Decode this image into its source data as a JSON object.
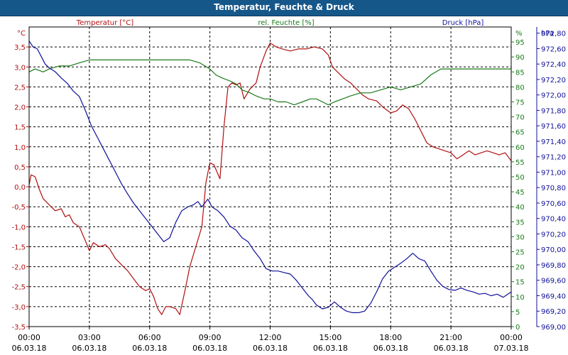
{
  "window": {
    "title": "Temperatur, Feuchte & Druck"
  },
  "colors": {
    "temperature": "#b01010",
    "humidity": "#1a7a1a",
    "pressure": "#10109a",
    "titlebar": "#16578a",
    "grid": "#000000"
  },
  "chart_data": {
    "type": "line",
    "title": "Temperatur, Feuchte & Druck",
    "xlim": [
      0,
      24
    ],
    "xticks": [
      {
        "x": 0,
        "time": "00:00",
        "date": "06.03.18"
      },
      {
        "x": 3,
        "time": "03:00",
        "date": "06.03.18"
      },
      {
        "x": 6,
        "time": "06:00",
        "date": "06.03.18"
      },
      {
        "x": 9,
        "time": "09:00",
        "date": "06.03.18"
      },
      {
        "x": 12,
        "time": "12:00",
        "date": "06.03.18"
      },
      {
        "x": 15,
        "time": "15:00",
        "date": "06.03.18"
      },
      {
        "x": 18,
        "time": "18:00",
        "date": "06.03.18"
      },
      {
        "x": 21,
        "time": "21:00",
        "date": "06.03.18"
      },
      {
        "x": 24,
        "time": "00:00",
        "date": "07.03.18"
      }
    ],
    "axes": {
      "temperature": {
        "title": "Temperatur [°C]",
        "unit": "°C",
        "ylim": [
          -3.5,
          4.0
        ],
        "ticks": [
          {
            "v": 3.5,
            "label": "3,5"
          },
          {
            "v": 3.0,
            "label": "3,0"
          },
          {
            "v": 2.5,
            "label": "2,5"
          },
          {
            "v": 2.0,
            "label": "2,0"
          },
          {
            "v": 1.5,
            "label": "1,5"
          },
          {
            "v": 1.0,
            "label": "1,0"
          },
          {
            "v": 0.5,
            "label": "0,5"
          },
          {
            "v": 0.0,
            "label": "0,0"
          },
          {
            "v": -0.5,
            "label": "-0,5"
          },
          {
            "v": -1.0,
            "label": "-1,0"
          },
          {
            "v": -1.5,
            "label": "-1,5"
          },
          {
            "v": -2.0,
            "label": "-2,0"
          },
          {
            "v": -2.5,
            "label": "-2,5"
          },
          {
            "v": -3.0,
            "label": "-3,0"
          },
          {
            "v": -3.5,
            "label": "-3,5"
          }
        ]
      },
      "humidity": {
        "title": "rel. Feuchte [%]",
        "unit": "%",
        "ylim": [
          0,
          100
        ],
        "ticks": [
          {
            "v": 95,
            "label": "95"
          },
          {
            "v": 90,
            "label": "90"
          },
          {
            "v": 85,
            "label": "85"
          },
          {
            "v": 80,
            "label": "80"
          },
          {
            "v": 75,
            "label": "75"
          },
          {
            "v": 70,
            "label": "70"
          },
          {
            "v": 65,
            "label": "65"
          },
          {
            "v": 60,
            "label": "60"
          },
          {
            "v": 55,
            "label": "55"
          },
          {
            "v": 50,
            "label": "50"
          },
          {
            "v": 45,
            "label": "45"
          },
          {
            "v": 40,
            "label": "40"
          },
          {
            "v": 35,
            "label": "35"
          },
          {
            "v": 30,
            "label": "30"
          },
          {
            "v": 25,
            "label": "25"
          },
          {
            "v": 20,
            "label": "20"
          },
          {
            "v": 15,
            "label": "15"
          },
          {
            "v": 10,
            "label": "10"
          },
          {
            "v": 5,
            "label": "5"
          },
          {
            "v": 0,
            "label": "0"
          }
        ]
      },
      "pressure": {
        "title": "Druck [hPa]",
        "unit": "hPa",
        "ylim": [
          969.0,
          972.88
        ],
        "ticks": [
          {
            "v": 972.8,
            "label": "972,80"
          },
          {
            "v": 972.6,
            "label": "972,60"
          },
          {
            "v": 972.4,
            "label": "972,40"
          },
          {
            "v": 972.2,
            "label": "972,20"
          },
          {
            "v": 972.0,
            "label": "972,00"
          },
          {
            "v": 971.8,
            "label": "971,80"
          },
          {
            "v": 971.6,
            "label": "971,60"
          },
          {
            "v": 971.4,
            "label": "971,40"
          },
          {
            "v": 971.2,
            "label": "971,20"
          },
          {
            "v": 971.0,
            "label": "971,00"
          },
          {
            "v": 970.8,
            "label": "970,80"
          },
          {
            "v": 970.6,
            "label": "970,60"
          },
          {
            "v": 970.4,
            "label": "970,40"
          },
          {
            "v": 970.2,
            "label": "970,20"
          },
          {
            "v": 970.0,
            "label": "970,00"
          },
          {
            "v": 969.8,
            "label": "969,80"
          },
          {
            "v": 969.6,
            "label": "969,60"
          },
          {
            "v": 969.4,
            "label": "969,40"
          },
          {
            "v": 969.2,
            "label": "969,20"
          },
          {
            "v": 969.0,
            "label": "969,00"
          }
        ]
      }
    },
    "series": [
      {
        "name": "Temperatur [°C]",
        "axis": "temperature",
        "points": [
          [
            0,
            0.05
          ],
          [
            0.1,
            0.3
          ],
          [
            0.3,
            0.25
          ],
          [
            0.5,
            -0.05
          ],
          [
            0.7,
            -0.3
          ],
          [
            1.0,
            -0.45
          ],
          [
            1.3,
            -0.6
          ],
          [
            1.6,
            -0.55
          ],
          [
            1.8,
            -0.75
          ],
          [
            2.0,
            -0.7
          ],
          [
            2.2,
            -0.9
          ],
          [
            2.5,
            -1.0
          ],
          [
            2.8,
            -1.35
          ],
          [
            3.0,
            -1.6
          ],
          [
            3.2,
            -1.4
          ],
          [
            3.5,
            -1.5
          ],
          [
            3.8,
            -1.45
          ],
          [
            4.0,
            -1.55
          ],
          [
            4.3,
            -1.8
          ],
          [
            4.6,
            -1.95
          ],
          [
            4.9,
            -2.1
          ],
          [
            5.2,
            -2.3
          ],
          [
            5.5,
            -2.5
          ],
          [
            5.8,
            -2.6
          ],
          [
            6.0,
            -2.55
          ],
          [
            6.2,
            -2.75
          ],
          [
            6.4,
            -3.05
          ],
          [
            6.6,
            -3.2
          ],
          [
            6.8,
            -3.0
          ],
          [
            7.0,
            -3.0
          ],
          [
            7.3,
            -3.05
          ],
          [
            7.5,
            -3.2
          ],
          [
            7.8,
            -2.5
          ],
          [
            8.0,
            -2.0
          ],
          [
            8.3,
            -1.5
          ],
          [
            8.6,
            -1.0
          ],
          [
            8.8,
            0.1
          ],
          [
            9.0,
            0.6
          ],
          [
            9.2,
            0.55
          ],
          [
            9.5,
            0.2
          ],
          [
            9.7,
            1.5
          ],
          [
            9.9,
            2.5
          ],
          [
            10.1,
            2.6
          ],
          [
            10.3,
            2.55
          ],
          [
            10.5,
            2.6
          ],
          [
            10.7,
            2.2
          ],
          [
            11.0,
            2.45
          ],
          [
            11.3,
            2.6
          ],
          [
            11.5,
            3.0
          ],
          [
            11.8,
            3.4
          ],
          [
            12.0,
            3.6
          ],
          [
            12.3,
            3.5
          ],
          [
            12.6,
            3.45
          ],
          [
            13.0,
            3.4
          ],
          [
            13.4,
            3.45
          ],
          [
            13.8,
            3.45
          ],
          [
            14.2,
            3.5
          ],
          [
            14.6,
            3.45
          ],
          [
            14.9,
            3.3
          ],
          [
            15.1,
            3.0
          ],
          [
            15.4,
            2.85
          ],
          [
            15.7,
            2.7
          ],
          [
            16.0,
            2.6
          ],
          [
            16.3,
            2.45
          ],
          [
            16.6,
            2.3
          ],
          [
            16.9,
            2.2
          ],
          [
            17.3,
            2.15
          ],
          [
            17.6,
            2.0
          ],
          [
            18.0,
            1.85
          ],
          [
            18.3,
            1.9
          ],
          [
            18.6,
            2.05
          ],
          [
            18.9,
            1.95
          ],
          [
            19.2,
            1.7
          ],
          [
            19.5,
            1.4
          ],
          [
            19.8,
            1.1
          ],
          [
            20.1,
            1.0
          ],
          [
            20.4,
            0.95
          ],
          [
            20.7,
            0.9
          ],
          [
            21.0,
            0.85
          ],
          [
            21.3,
            0.7
          ],
          [
            21.6,
            0.8
          ],
          [
            21.9,
            0.9
          ],
          [
            22.2,
            0.8
          ],
          [
            22.5,
            0.85
          ],
          [
            22.8,
            0.9
          ],
          [
            23.1,
            0.85
          ],
          [
            23.4,
            0.8
          ],
          [
            23.7,
            0.85
          ],
          [
            24.0,
            0.65
          ]
        ]
      },
      {
        "name": "rel. Feuchte [%]",
        "axis": "humidity",
        "points": [
          [
            0,
            85
          ],
          [
            0.3,
            86
          ],
          [
            0.7,
            85
          ],
          [
            1.0,
            86
          ],
          [
            1.5,
            87
          ],
          [
            2.0,
            87
          ],
          [
            2.5,
            88
          ],
          [
            3.0,
            89
          ],
          [
            3.5,
            89
          ],
          [
            4.0,
            89
          ],
          [
            4.5,
            89
          ],
          [
            5.0,
            89
          ],
          [
            5.5,
            89
          ],
          [
            6.0,
            89
          ],
          [
            6.5,
            89
          ],
          [
            7.0,
            89
          ],
          [
            7.5,
            89
          ],
          [
            8.0,
            89
          ],
          [
            8.5,
            88
          ],
          [
            9.0,
            86
          ],
          [
            9.3,
            84
          ],
          [
            9.6,
            83
          ],
          [
            10.0,
            82
          ],
          [
            10.3,
            81
          ],
          [
            10.6,
            79
          ],
          [
            11.0,
            78
          ],
          [
            11.3,
            77
          ],
          [
            11.7,
            76
          ],
          [
            12.0,
            76
          ],
          [
            12.4,
            75
          ],
          [
            12.8,
            75
          ],
          [
            13.2,
            74
          ],
          [
            13.6,
            75
          ],
          [
            14.0,
            76
          ],
          [
            14.3,
            76
          ],
          [
            14.6,
            75
          ],
          [
            14.9,
            74
          ],
          [
            15.2,
            75
          ],
          [
            15.6,
            76
          ],
          [
            16.0,
            77
          ],
          [
            16.5,
            78
          ],
          [
            17.0,
            78
          ],
          [
            17.5,
            79
          ],
          [
            18.0,
            80
          ],
          [
            18.5,
            79
          ],
          [
            19.0,
            80
          ],
          [
            19.5,
            81
          ],
          [
            20.0,
            84
          ],
          [
            20.5,
            86
          ],
          [
            21.0,
            86
          ],
          [
            21.5,
            86
          ],
          [
            22.0,
            86
          ],
          [
            22.5,
            86
          ],
          [
            23.0,
            86
          ],
          [
            23.5,
            86
          ],
          [
            24.0,
            86
          ]
        ]
      },
      {
        "name": "Druck [hPa]",
        "axis": "pressure",
        "points": [
          [
            0,
            972.7
          ],
          [
            0.2,
            972.62
          ],
          [
            0.4,
            972.6
          ],
          [
            0.6,
            972.5
          ],
          [
            0.8,
            972.4
          ],
          [
            1.0,
            972.35
          ],
          [
            1.3,
            972.3
          ],
          [
            1.6,
            972.22
          ],
          [
            1.9,
            972.15
          ],
          [
            2.2,
            972.05
          ],
          [
            2.5,
            971.98
          ],
          [
            2.8,
            971.8
          ],
          [
            3.1,
            971.6
          ],
          [
            3.4,
            971.45
          ],
          [
            3.7,
            971.3
          ],
          [
            4.0,
            971.15
          ],
          [
            4.3,
            971.0
          ],
          [
            4.6,
            970.85
          ],
          [
            4.9,
            970.72
          ],
          [
            5.2,
            970.6
          ],
          [
            5.5,
            970.5
          ],
          [
            5.8,
            970.4
          ],
          [
            6.1,
            970.3
          ],
          [
            6.4,
            970.2
          ],
          [
            6.7,
            970.1
          ],
          [
            7.0,
            970.15
          ],
          [
            7.3,
            970.35
          ],
          [
            7.6,
            970.5
          ],
          [
            7.9,
            970.55
          ],
          [
            8.2,
            970.58
          ],
          [
            8.4,
            970.62
          ],
          [
            8.6,
            970.55
          ],
          [
            8.9,
            970.65
          ],
          [
            9.1,
            970.55
          ],
          [
            9.4,
            970.5
          ],
          [
            9.7,
            970.42
          ],
          [
            10.0,
            970.3
          ],
          [
            10.3,
            970.25
          ],
          [
            10.6,
            970.15
          ],
          [
            10.9,
            970.1
          ],
          [
            11.2,
            969.98
          ],
          [
            11.5,
            969.88
          ],
          [
            11.8,
            969.75
          ],
          [
            12.1,
            969.72
          ],
          [
            12.4,
            969.72
          ],
          [
            12.7,
            969.7
          ],
          [
            13.0,
            969.68
          ],
          [
            13.3,
            969.6
          ],
          [
            13.6,
            969.5
          ],
          [
            13.9,
            969.4
          ],
          [
            14.1,
            969.35
          ],
          [
            14.3,
            969.28
          ],
          [
            14.6,
            969.23
          ],
          [
            14.9,
            969.25
          ],
          [
            15.2,
            969.32
          ],
          [
            15.5,
            969.25
          ],
          [
            15.8,
            969.2
          ],
          [
            16.1,
            969.18
          ],
          [
            16.4,
            969.18
          ],
          [
            16.7,
            969.2
          ],
          [
            17.0,
            969.3
          ],
          [
            17.3,
            969.45
          ],
          [
            17.6,
            969.62
          ],
          [
            17.9,
            969.72
          ],
          [
            18.2,
            969.77
          ],
          [
            18.5,
            969.82
          ],
          [
            18.8,
            969.88
          ],
          [
            19.1,
            969.95
          ],
          [
            19.4,
            969.88
          ],
          [
            19.7,
            969.85
          ],
          [
            20.0,
            969.72
          ],
          [
            20.3,
            969.6
          ],
          [
            20.6,
            969.52
          ],
          [
            20.9,
            969.48
          ],
          [
            21.2,
            969.47
          ],
          [
            21.5,
            969.5
          ],
          [
            21.8,
            969.47
          ],
          [
            22.1,
            969.45
          ],
          [
            22.4,
            969.42
          ],
          [
            22.7,
            969.43
          ],
          [
            23.0,
            969.4
          ],
          [
            23.3,
            969.42
          ],
          [
            23.6,
            969.38
          ],
          [
            24.0,
            969.45
          ]
        ]
      }
    ]
  }
}
